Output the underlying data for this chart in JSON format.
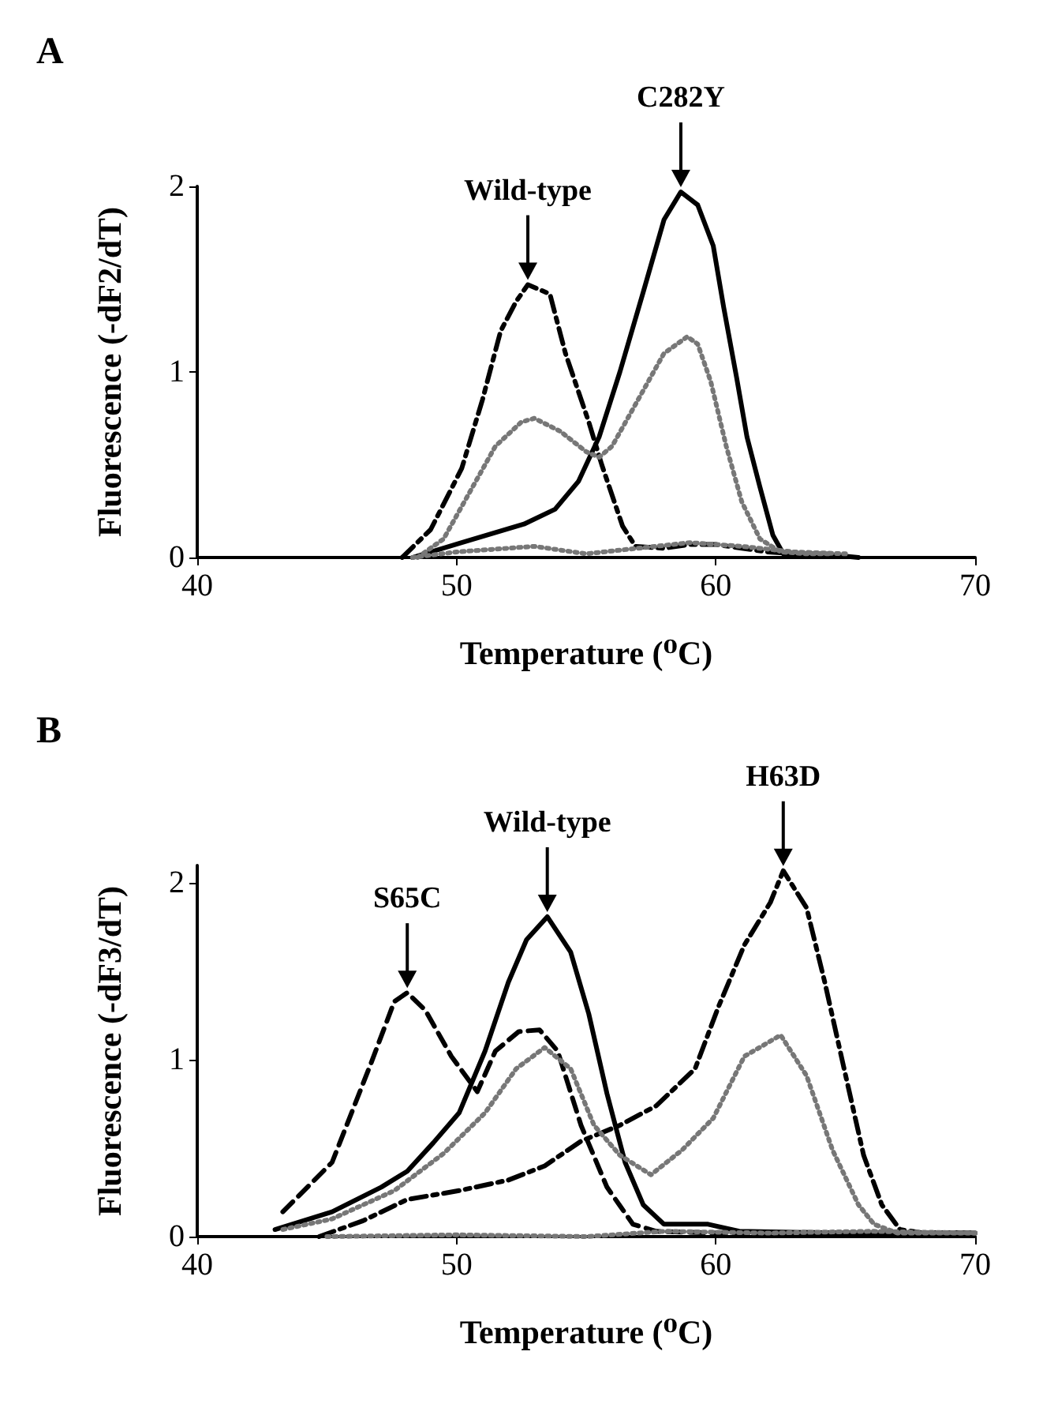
{
  "chart_data": [
    {
      "type": "line",
      "title": "A",
      "xlabel": "Temperature (⁰C)",
      "ylabel": "Fluorescence (-dF2/dT)",
      "xlim": [
        40,
        70
      ],
      "xticks": [
        40,
        50,
        60,
        70
      ],
      "ylim": [
        0,
        2
      ],
      "yticks": [
        0,
        1,
        2
      ],
      "marker": "none",
      "annotations": [
        {
          "text": "Wild-type",
          "x": 52.75,
          "y": 1.47
        },
        {
          "text": "C282Y",
          "x": 58.65,
          "y": 1.97
        }
      ],
      "series": [
        {
          "color": "#000000",
          "line_style": "solid",
          "x": [
            48.3,
            50.2,
            52.6,
            53.8,
            54.7,
            55.5,
            56.3,
            57.2,
            58,
            58.65,
            59.3,
            59.9,
            60.3,
            60.8,
            61.2,
            61.7,
            62.2,
            62.6,
            64,
            65.5
          ],
          "values": [
            0,
            0.08,
            0.18,
            0.26,
            0.41,
            0.65,
            1.0,
            1.43,
            1.82,
            1.97,
            1.9,
            1.68,
            1.35,
            0.97,
            0.65,
            0.38,
            0.12,
            0.02,
            0.02,
            0
          ]
        },
        {
          "color": "#000000",
          "line_style": "dashdot",
          "x": [
            47.9,
            49,
            50.2,
            51,
            51.7,
            52.3,
            52.75,
            53.6,
            54.2,
            55.1,
            55.6,
            56.4,
            56.9,
            58,
            59,
            60,
            61,
            62,
            63,
            64
          ],
          "values": [
            0,
            0.15,
            0.48,
            0.85,
            1.22,
            1.38,
            1.47,
            1.42,
            1.1,
            0.73,
            0.5,
            0.17,
            0.06,
            0.05,
            0.07,
            0.07,
            0.05,
            0.03,
            0.02,
            0.02
          ]
        },
        {
          "color": "#777777",
          "line_style": "dotted",
          "x": [
            48.5,
            49.5,
            50.5,
            51.5,
            52.5,
            53,
            54,
            55,
            55.5,
            56,
            57,
            58,
            58.9,
            59.3,
            59.8,
            60.4,
            61,
            61.7,
            62.5,
            63.5,
            64.5
          ],
          "values": [
            0,
            0.1,
            0.35,
            0.6,
            0.73,
            0.75,
            0.68,
            0.57,
            0.54,
            0.6,
            0.85,
            1.1,
            1.19,
            1.15,
            0.95,
            0.6,
            0.3,
            0.1,
            0.03,
            0.02,
            0.02
          ]
        },
        {
          "color": "#777777",
          "line_style": "dotted",
          "x": [
            48.3,
            50,
            53,
            55,
            57,
            59,
            61,
            63,
            65
          ],
          "values": [
            0,
            0.03,
            0.06,
            0.02,
            0.05,
            0.08,
            0.06,
            0.03,
            0.02
          ]
        }
      ]
    },
    {
      "type": "line",
      "title": "B",
      "xlabel": "Temperature (⁰C)",
      "ylabel": "Fluorescence (-dF3/dT)",
      "xlim": [
        40,
        70
      ],
      "xticks": [
        40,
        50,
        60,
        70
      ],
      "ylim": [
        0,
        2.1
      ],
      "yticks": [
        0,
        1,
        2
      ],
      "marker": "none",
      "annotations": [
        {
          "text": "S65C",
          "x": 48.1,
          "y": 1.38
        },
        {
          "text": "Wild-type",
          "x": 53.5,
          "y": 1.81
        },
        {
          "text": "H63D",
          "x": 62.6,
          "y": 2.07
        }
      ],
      "series": [
        {
          "color": "#000000",
          "line_style": "dashed",
          "x": [
            43.3,
            45.2,
            46.7,
            47.6,
            48.1,
            48.8,
            49.8,
            50.8,
            51.5,
            52.4,
            53.2,
            53.9,
            54.8,
            55.8,
            56.8,
            57.7,
            60,
            65,
            70
          ],
          "values": [
            0.14,
            0.42,
            0.98,
            1.33,
            1.38,
            1.28,
            1.02,
            0.82,
            1.05,
            1.16,
            1.17,
            1.05,
            0.63,
            0.28,
            0.07,
            0.03,
            0.02,
            0.02,
            0.02
          ]
        },
        {
          "color": "#000000",
          "line_style": "solid",
          "x": [
            43,
            45.2,
            47.1,
            48.1,
            49.1,
            50.1,
            51.1,
            52,
            52.7,
            53.5,
            54.4,
            55.1,
            55.8,
            56.5,
            57.2,
            58,
            59.7,
            60.9,
            65,
            70
          ],
          "values": [
            0.04,
            0.14,
            0.28,
            0.37,
            0.53,
            0.7,
            1.05,
            1.44,
            1.68,
            1.81,
            1.61,
            1.26,
            0.81,
            0.42,
            0.18,
            0.07,
            0.07,
            0.03,
            0.02,
            0.02
          ]
        },
        {
          "color": "#000000",
          "line_style": "dashdot",
          "x": [
            44.7,
            46.4,
            48.1,
            50.1,
            52,
            53.4,
            54.8,
            56.3,
            57.7,
            59.2,
            60.1,
            61.1,
            62.1,
            62.6,
            63.5,
            64.2,
            64.9,
            65.7,
            66.4,
            67.1,
            68,
            70
          ],
          "values": [
            0,
            0.09,
            0.21,
            0.26,
            0.32,
            0.4,
            0.54,
            0.63,
            0.74,
            0.95,
            1.3,
            1.65,
            1.89,
            2.07,
            1.86,
            1.44,
            0.98,
            0.46,
            0.18,
            0.04,
            0.02,
            0.02
          ]
        },
        {
          "color": "#777777",
          "line_style": "dotted",
          "x": [
            43.3,
            45.2,
            47.6,
            49.5,
            51.1,
            52.3,
            53.4,
            54.4,
            55.3,
            56.3,
            57.5,
            58.7,
            59.9,
            61.1,
            62.5,
            63.5,
            64.5,
            65.5,
            66.1,
            67,
            70
          ],
          "values": [
            0.04,
            0.1,
            0.26,
            0.47,
            0.7,
            0.95,
            1.07,
            0.95,
            0.63,
            0.46,
            0.35,
            0.49,
            0.67,
            1.02,
            1.14,
            0.91,
            0.49,
            0.18,
            0.07,
            0.02,
            0.02
          ]
        },
        {
          "color": "#777777",
          "line_style": "dotted",
          "x": [
            45,
            50,
            55,
            58,
            62,
            66,
            70
          ],
          "values": [
            0,
            0.01,
            0,
            0.03,
            0.02,
            0.03,
            0.02
          ]
        }
      ]
    }
  ]
}
